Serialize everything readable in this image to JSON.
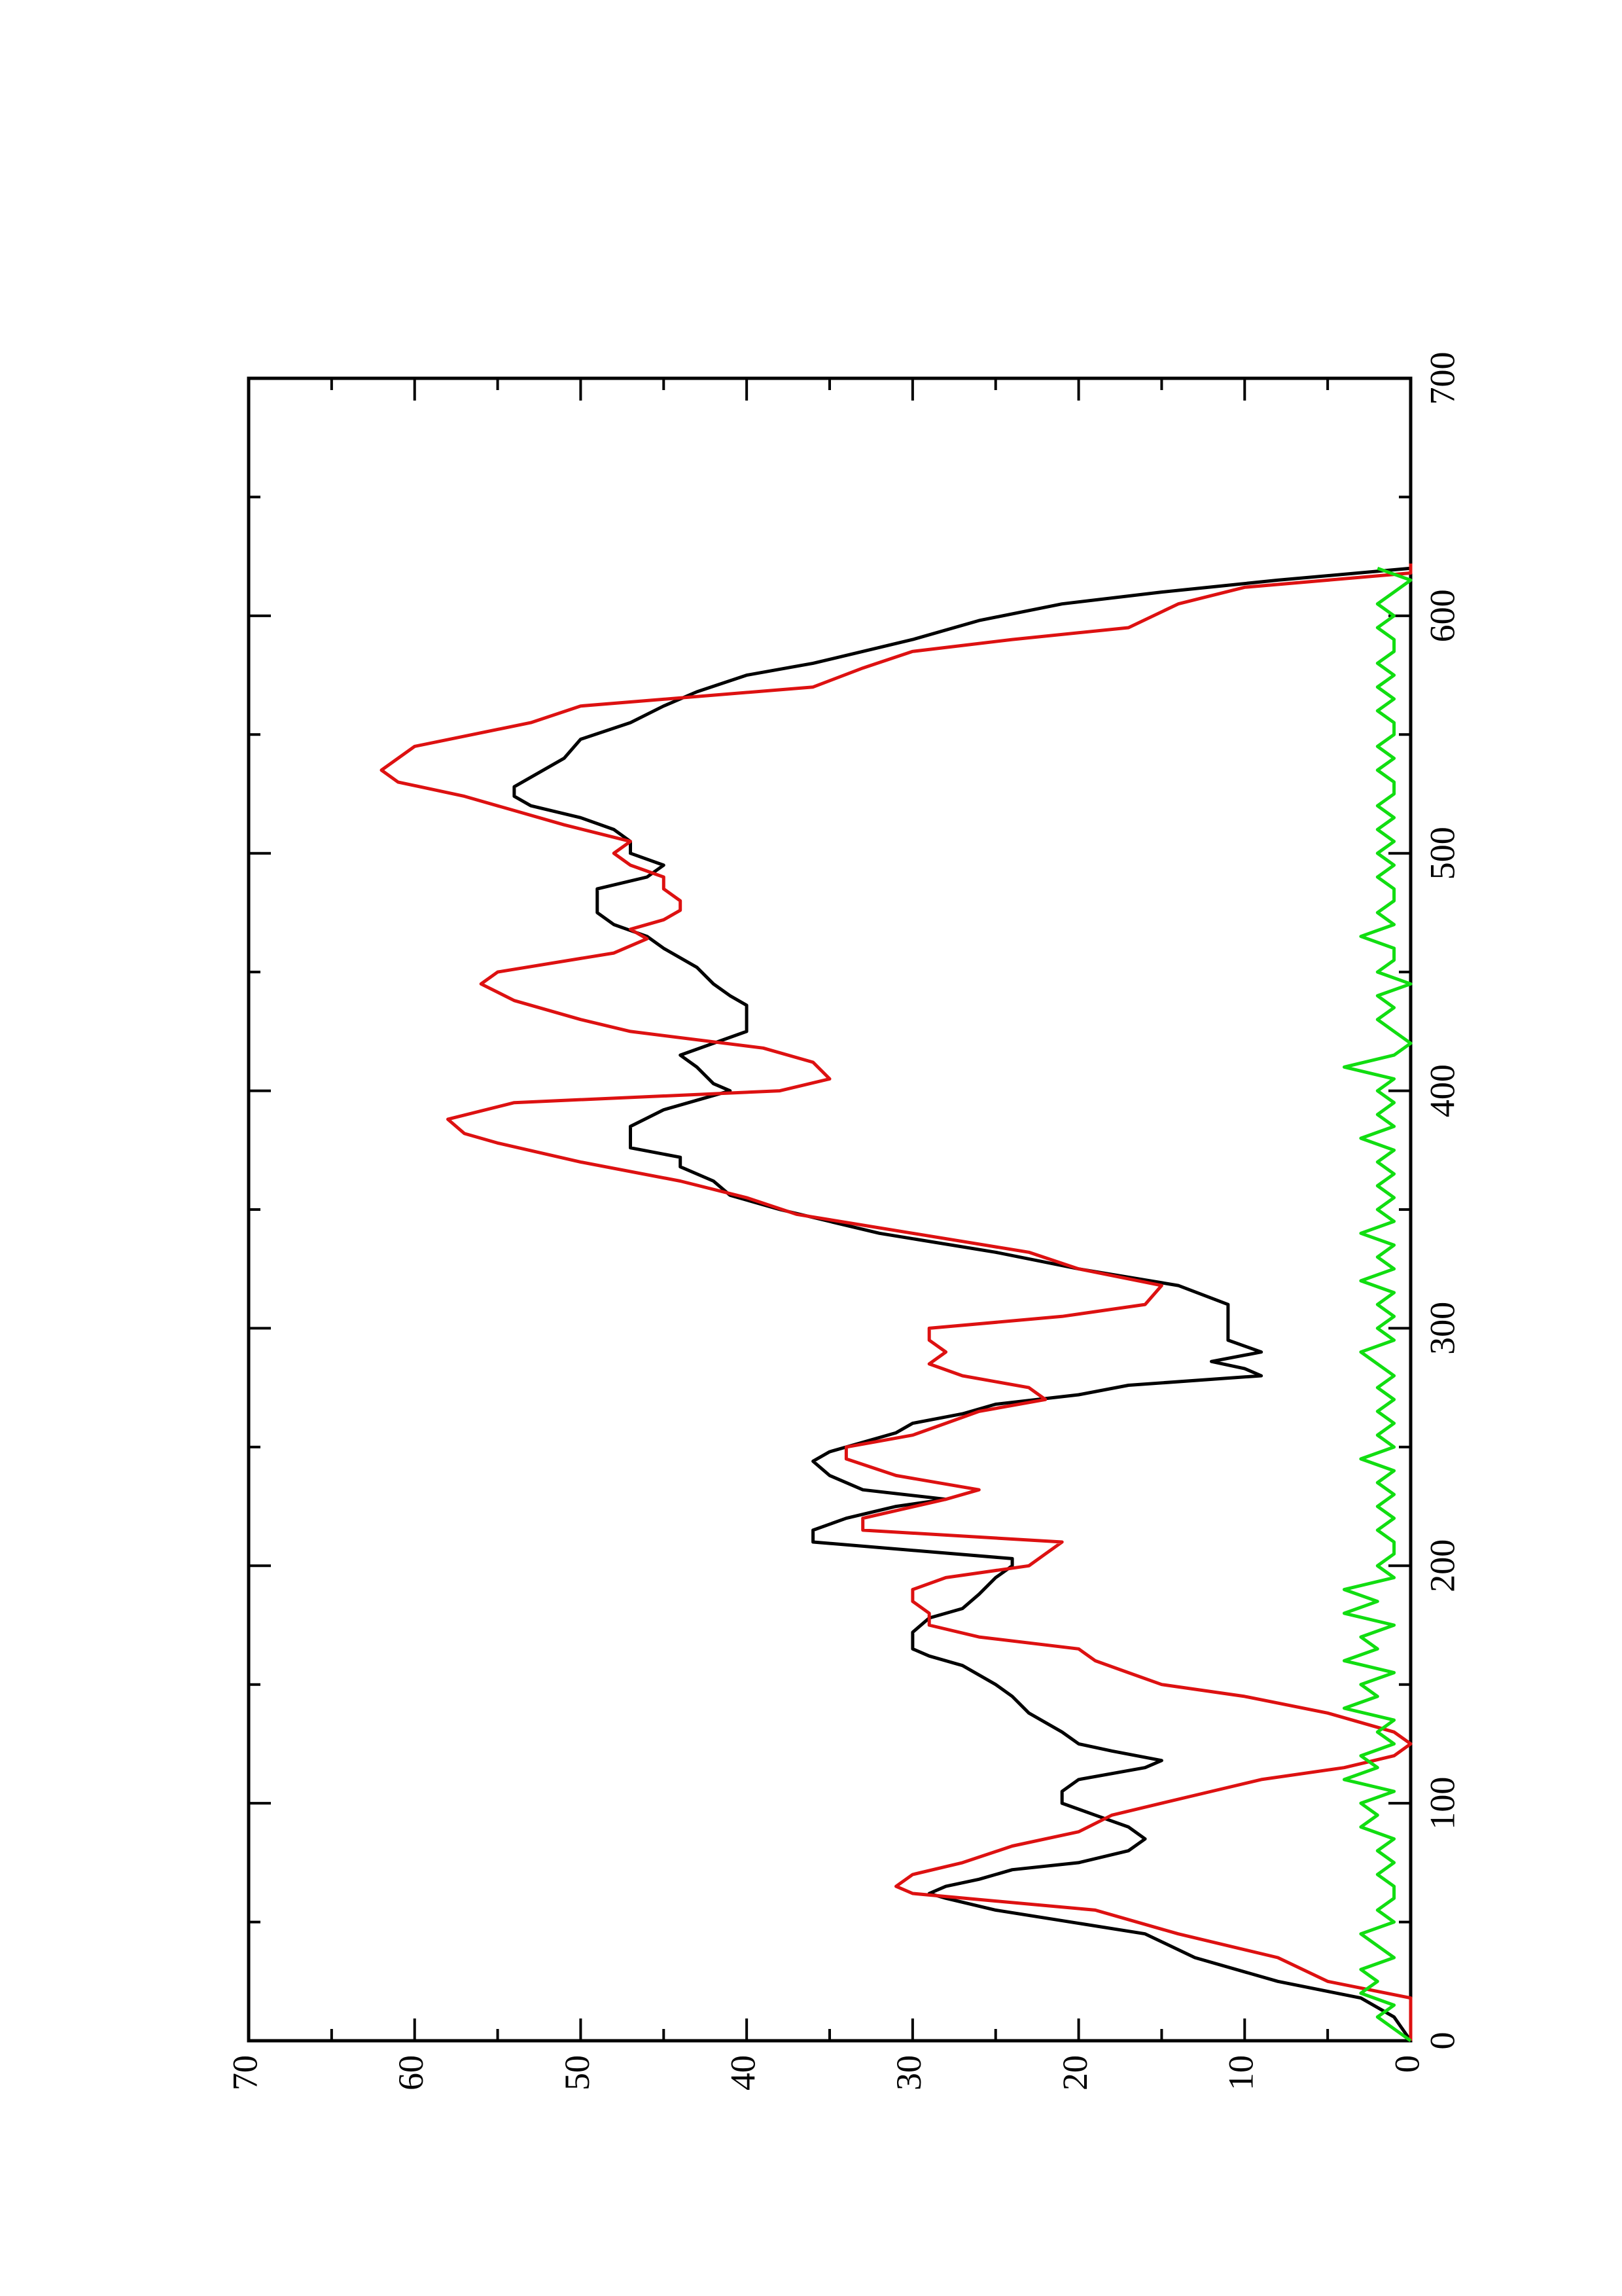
{
  "chart_data": {
    "type": "line",
    "title": "",
    "xlabel": "",
    "ylabel": "",
    "orientation": "rotated-90-ccw",
    "xlim": [
      0,
      700
    ],
    "ylim": [
      0,
      70
    ],
    "x_ticks": [
      0,
      100,
      200,
      300,
      400,
      500,
      600,
      700
    ],
    "x_tick_labels": [
      "0",
      "100",
      "200",
      "300",
      "400",
      "500",
      "600",
      "700"
    ],
    "x_minor_ticks": [
      50,
      150,
      250,
      350,
      450,
      550,
      650
    ],
    "y_ticks": [
      0,
      10,
      20,
      30,
      40,
      50,
      60,
      70
    ],
    "y_tick_labels": [
      "0",
      "10",
      "20",
      "30",
      "40",
      "50",
      "60",
      "70"
    ],
    "y_minor_ticks": [
      5,
      15,
      25,
      35,
      45,
      55,
      65
    ],
    "grid": false,
    "legend": "none",
    "series": [
      {
        "color": "#000000",
        "x": [
          0,
          10,
          18,
          25,
          35,
          45,
          55,
          60,
          62,
          65,
          68,
          72,
          75,
          80,
          85,
          90,
          95,
          100,
          105,
          110,
          115,
          118,
          122,
          125,
          130,
          138,
          145,
          150,
          158,
          162,
          165,
          168,
          172,
          178,
          182,
          188,
          195,
          200,
          203,
          210,
          215,
          220,
          225,
          228,
          232,
          238,
          244,
          248,
          252,
          256,
          260,
          264,
          268,
          272,
          276,
          280,
          283,
          286,
          290,
          295,
          300,
          305,
          310,
          318,
          325,
          332,
          340,
          350,
          356,
          362,
          368,
          372,
          376,
          380,
          385,
          392,
          398,
          400,
          403,
          410,
          415,
          420,
          425,
          430,
          436,
          440,
          445,
          452,
          460,
          465,
          470,
          475,
          480,
          485,
          490,
          495,
          500,
          505,
          510,
          515,
          520,
          524,
          528,
          532,
          540,
          548,
          555,
          562,
          568,
          575,
          580,
          585,
          590,
          598,
          605,
          610,
          615,
          620
        ],
        "y": [
          0,
          1,
          3,
          8,
          13,
          16,
          25,
          28,
          29,
          28,
          26,
          24,
          20,
          17,
          16,
          17,
          19,
          21,
          21,
          20,
          16,
          15,
          18,
          20,
          21,
          23,
          24,
          25,
          27,
          29,
          30,
          30,
          30,
          29,
          27,
          26,
          25,
          24,
          24,
          36,
          36,
          34,
          31,
          28,
          33,
          35,
          36,
          35,
          33,
          31,
          30,
          27,
          25,
          20,
          17,
          9,
          10,
          12,
          9,
          11,
          11,
          11,
          11,
          14,
          20,
          25,
          32,
          38,
          41,
          42,
          44,
          44,
          47,
          47,
          47,
          45,
          42,
          41,
          42,
          43,
          44,
          42,
          40,
          40,
          40,
          41,
          42,
          43,
          45,
          46,
          48,
          49,
          49,
          49,
          46,
          45,
          47,
          47,
          48,
          50,
          53,
          54,
          54,
          53,
          51,
          50,
          47,
          45,
          43,
          40,
          36,
          33,
          30,
          26,
          21,
          15,
          8,
          0
        ]
      },
      {
        "color": "#dd1111",
        "x": [
          0,
          18,
          25,
          35,
          45,
          55,
          62,
          65,
          70,
          75,
          82,
          88,
          95,
          100,
          105,
          110,
          115,
          120,
          125,
          130,
          138,
          145,
          150,
          155,
          160,
          165,
          170,
          175,
          180,
          185,
          190,
          195,
          200,
          205,
          210,
          215,
          220,
          228,
          232,
          238,
          245,
          250,
          255,
          260,
          265,
          270,
          275,
          280,
          285,
          290,
          295,
          300,
          305,
          310,
          318,
          325,
          332,
          340,
          348,
          355,
          362,
          370,
          378,
          382,
          388,
          395,
          400,
          405,
          412,
          418,
          425,
          430,
          438,
          445,
          450,
          458,
          464,
          468,
          472,
          476,
          480,
          485,
          490,
          495,
          500,
          505,
          512,
          518,
          524,
          530,
          535,
          545,
          555,
          562,
          570,
          578,
          585,
          590,
          595,
          605,
          612,
          618,
          622
        ],
        "y": [
          0,
          0,
          5,
          8,
          14,
          19,
          30,
          31,
          30,
          27,
          24,
          20,
          18,
          15,
          12,
          9,
          4,
          1,
          0,
          1,
          5,
          10,
          15,
          17,
          19,
          20,
          26,
          29,
          29,
          30,
          30,
          28,
          23,
          22,
          21,
          33,
          33,
          28,
          26,
          31,
          34,
          34,
          30,
          28,
          26,
          22,
          23,
          27,
          29,
          28,
          29,
          29,
          21,
          16,
          15,
          20,
          23,
          30,
          37,
          40,
          44,
          50,
          55,
          57,
          58,
          54,
          38,
          35,
          36,
          39,
          47,
          50,
          54,
          56,
          55,
          48,
          46,
          47,
          45,
          44,
          44,
          45,
          45,
          47,
          48,
          47,
          51,
          54,
          57,
          61,
          62,
          60,
          53,
          50,
          36,
          33,
          30,
          24,
          17,
          14,
          10,
          0,
          0
        ]
      },
      {
        "color": "#11dd11",
        "noise": "green low-level noise series near zero, values 0 to 5",
        "x": [
          0,
          5,
          10,
          15,
          20,
          25,
          30,
          35,
          40,
          45,
          50,
          55,
          60,
          65,
          70,
          75,
          80,
          85,
          90,
          95,
          100,
          105,
          110,
          115,
          120,
          125,
          130,
          135,
          140,
          145,
          150,
          155,
          160,
          165,
          170,
          175,
          180,
          185,
          190,
          195,
          200,
          205,
          210,
          215,
          220,
          225,
          230,
          235,
          240,
          245,
          250,
          255,
          260,
          265,
          270,
          275,
          280,
          285,
          290,
          295,
          300,
          305,
          310,
          315,
          320,
          325,
          330,
          335,
          340,
          345,
          350,
          355,
          360,
          365,
          370,
          375,
          380,
          385,
          390,
          395,
          400,
          405,
          410,
          415,
          420,
          425,
          430,
          435,
          440,
          445,
          450,
          455,
          460,
          465,
          470,
          475,
          480,
          485,
          490,
          495,
          500,
          505,
          510,
          515,
          520,
          525,
          530,
          535,
          540,
          545,
          550,
          555,
          560,
          565,
          570,
          575,
          580,
          585,
          590,
          595,
          600,
          605,
          610,
          615,
          620
        ],
        "y": [
          0,
          1,
          2,
          1,
          3,
          2,
          3,
          1,
          2,
          3,
          1,
          2,
          1,
          1,
          2,
          1,
          2,
          1,
          3,
          2,
          3,
          1,
          4,
          2,
          3,
          1,
          2,
          1,
          4,
          2,
          3,
          1,
          4,
          2,
          3,
          1,
          4,
          2,
          4,
          1,
          2,
          1,
          1,
          2,
          1,
          2,
          1,
          2,
          1,
          3,
          1,
          2,
          1,
          2,
          1,
          2,
          1,
          2,
          3,
          1,
          2,
          1,
          2,
          1,
          3,
          1,
          2,
          1,
          3,
          1,
          2,
          1,
          2,
          1,
          2,
          1,
          3,
          1,
          2,
          1,
          2,
          1,
          4,
          1,
          0,
          1,
          2,
          1,
          2,
          0,
          2,
          1,
          1,
          3,
          1,
          2,
          1,
          1,
          2,
          1,
          2,
          1,
          2,
          1,
          2,
          1,
          1,
          2,
          1,
          2,
          1,
          1,
          2,
          1,
          2,
          1,
          2,
          1,
          1,
          2,
          1,
          2,
          1,
          0,
          2
        ]
      }
    ]
  }
}
